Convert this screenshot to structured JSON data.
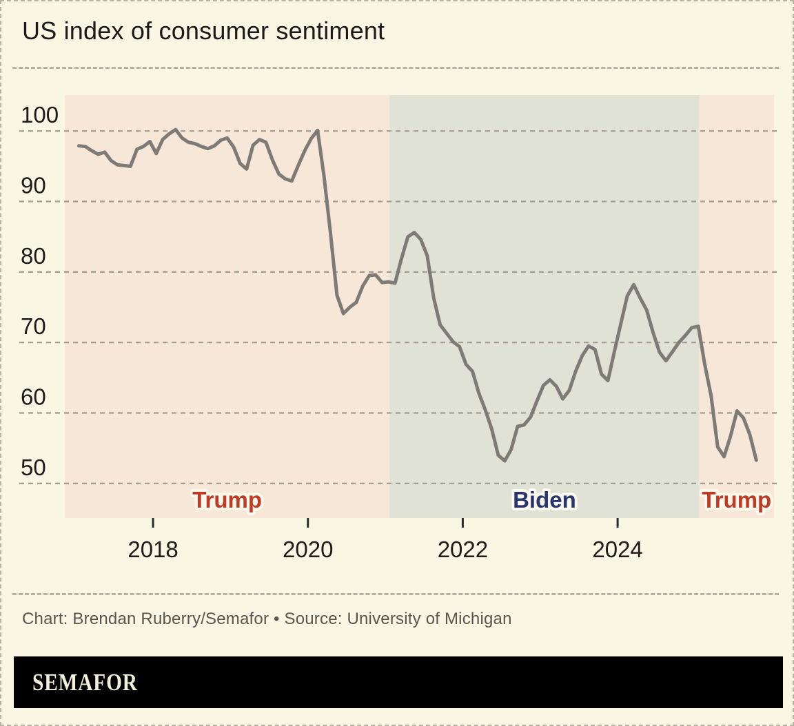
{
  "page": {
    "title": "US index of consumer sentiment",
    "credit": "Chart: Brendan Ruberry/Semafor • Source: University of Michigan",
    "brand": "SEMAFOR"
  },
  "colors": {
    "background": "#f9f6e3",
    "line": "#7e7b77",
    "grid": "#a19d90",
    "axis_text": "#1c1b19",
    "tick_mark": "#2a2a27",
    "credit_text": "#57564f",
    "brand_bg": "#000000",
    "brand_text": "#f4efda",
    "label_halo": "#fbf8ec",
    "trump_region": "#f7e7d8",
    "biden_region": "#e1e2d6",
    "trump_label": "#c13a24",
    "biden_label": "#293470"
  },
  "chart_data": {
    "type": "line",
    "title": "US index of consumer sentiment",
    "series_name": "Index of consumer sentiment",
    "grid": "horizontal dashed",
    "legend": "none",
    "y_ticks": [
      100,
      90,
      80,
      70,
      60,
      50
    ],
    "x_ticks": [
      2018,
      2020,
      2022,
      2024
    ],
    "x_domain": [
      2016.86,
      2026.02
    ],
    "y_domain": [
      45.1,
      105.1
    ],
    "regions": [
      {
        "label": "Trump",
        "start": 2016.86,
        "end": 2021.055,
        "fill": "#f7e7d8",
        "label_color": "#c13a24"
      },
      {
        "label": "Biden",
        "start": 2021.055,
        "end": 2025.055,
        "fill": "#e1e2d6",
        "label_color": "#293470"
      },
      {
        "label": "Trump",
        "start": 2025.055,
        "end": 2026.02,
        "fill": "#f7e7d8",
        "label_color": "#c13a24"
      }
    ],
    "x": [
      "2017-01",
      "2017-02",
      "2017-03",
      "2017-04",
      "2017-05",
      "2017-06",
      "2017-07",
      "2017-08",
      "2017-09",
      "2017-10",
      "2017-11",
      "2017-12",
      "2018-01",
      "2018-02",
      "2018-03",
      "2018-04",
      "2018-05",
      "2018-06",
      "2018-07",
      "2018-08",
      "2018-09",
      "2018-10",
      "2018-11",
      "2018-12",
      "2019-01",
      "2019-02",
      "2019-03",
      "2019-04",
      "2019-05",
      "2019-06",
      "2019-07",
      "2019-08",
      "2019-09",
      "2019-10",
      "2019-11",
      "2019-12",
      "2020-01",
      "2020-02",
      "2020-03",
      "2020-04",
      "2020-05",
      "2020-06",
      "2020-07",
      "2020-08",
      "2020-09",
      "2020-10",
      "2020-11",
      "2020-12",
      "2021-01",
      "2021-02",
      "2021-03",
      "2021-04",
      "2021-05",
      "2021-06",
      "2021-07",
      "2021-08",
      "2021-09",
      "2021-10",
      "2021-11",
      "2021-12",
      "2022-01",
      "2022-02",
      "2022-03",
      "2022-04",
      "2022-05",
      "2022-06",
      "2022-07",
      "2022-08",
      "2022-09",
      "2022-10",
      "2022-11",
      "2022-12",
      "2023-01",
      "2023-02",
      "2023-03",
      "2023-04",
      "2023-05",
      "2023-06",
      "2023-07",
      "2023-08",
      "2023-09",
      "2023-10",
      "2023-11",
      "2023-12",
      "2024-01",
      "2024-02",
      "2024-03",
      "2024-04",
      "2024-05",
      "2024-06",
      "2024-07",
      "2024-08",
      "2024-09",
      "2024-10",
      "2024-11",
      "2024-12",
      "2025-01",
      "2025-02",
      "2025-03",
      "2025-04",
      "2025-05",
      "2025-06",
      "2025-07",
      "2025-08",
      "2025-09",
      "2025-10"
    ],
    "values": [
      97.9,
      97.8,
      97.2,
      96.7,
      97.0,
      95.8,
      95.2,
      95.1,
      95.0,
      97.4,
      97.8,
      98.5,
      96.8,
      98.8,
      99.6,
      100.2,
      99.0,
      98.4,
      98.2,
      97.8,
      97.5,
      97.9,
      98.7,
      99.0,
      97.7,
      95.4,
      94.6,
      98.0,
      98.8,
      98.4,
      95.9,
      93.9,
      93.2,
      92.9,
      95.1,
      97.2,
      98.9,
      100.1,
      93.6,
      85.5,
      76.7,
      74.1,
      75.0,
      75.7,
      78.0,
      79.5,
      79.6,
      78.5,
      78.6,
      78.4,
      81.9,
      85.0,
      85.6,
      84.6,
      82.3,
      76.3,
      72.5,
      71.3,
      70.1,
      69.4,
      66.9,
      65.9,
      62.8,
      60.4,
      57.7,
      54.0,
      53.2,
      54.8,
      58.1,
      58.3,
      59.4,
      61.7,
      63.9,
      64.7,
      63.8,
      62.0,
      63.2,
      65.9,
      68.1,
      69.5,
      69.0,
      65.5,
      64.6,
      68.7,
      72.7,
      76.6,
      78.2,
      76.3,
      74.6,
      71.4,
      68.6,
      67.4,
      68.7,
      70.0,
      71.0,
      72.1,
      72.3,
      66.9,
      62.4,
      55.2,
      53.8,
      56.7,
      60.3,
      59.3,
      56.9,
      53.3
    ]
  }
}
